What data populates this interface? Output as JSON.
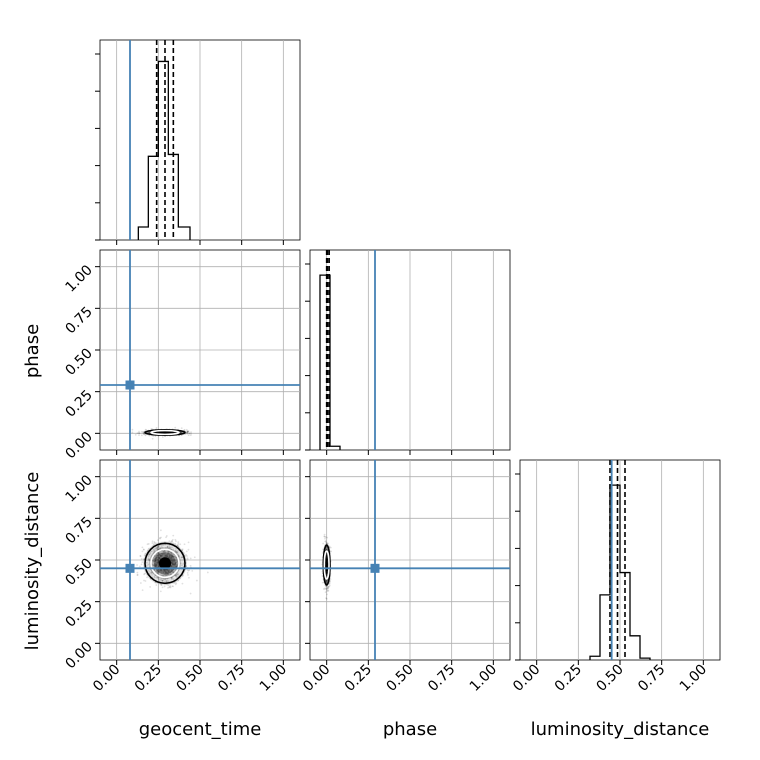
{
  "chart_data": {
    "type": "corner",
    "parameters": [
      "geocent_time",
      "phase",
      "luminosity_distance"
    ],
    "truths": {
      "geocent_time": 0.08,
      "phase": 0.29,
      "luminosity_distance": 0.45
    },
    "truth_color": "#4682b4",
    "axis_range": [
      -0.1,
      1.1
    ],
    "ticks": [
      0.0,
      0.25,
      0.5,
      0.75,
      1.0
    ],
    "tick_labels": [
      "0.00",
      "0.25",
      "0.50",
      "0.75",
      "1.00"
    ],
    "grid": true,
    "marginals": [
      {
        "parameter": "geocent_time",
        "bin_edges": [
          0.13,
          0.19,
          0.25,
          0.31,
          0.37,
          0.44
        ],
        "counts": [
          7,
          45,
          96,
          46,
          7
        ],
        "quantiles": [
          0.24,
          0.29,
          0.34
        ],
        "ymax": 100
      },
      {
        "parameter": "phase",
        "bin_edges": [
          -0.04,
          0.02,
          0.08
        ],
        "counts": [
          94,
          2
        ],
        "quantiles": [
          0.0,
          0.005,
          0.015
        ],
        "ymax": 100
      },
      {
        "parameter": "luminosity_distance",
        "bin_edges": [
          0.32,
          0.38,
          0.44,
          0.5,
          0.56,
          0.62,
          0.68
        ],
        "counts": [
          2,
          35,
          94,
          47,
          13,
          1
        ],
        "quantiles": [
          0.44,
          0.485,
          0.53
        ],
        "ymax": 100
      }
    ],
    "joints": [
      {
        "x": "geocent_time",
        "y": "phase",
        "center": [
          0.29,
          0.005
        ],
        "sigma": [
          0.06,
          0.008
        ]
      },
      {
        "x": "geocent_time",
        "y": "luminosity_distance",
        "center": [
          0.29,
          0.48
        ],
        "sigma": [
          0.06,
          0.06
        ]
      },
      {
        "x": "phase",
        "y": "luminosity_distance",
        "center": [
          0.0,
          0.47
        ],
        "sigma": [
          0.01,
          0.06
        ]
      }
    ]
  }
}
